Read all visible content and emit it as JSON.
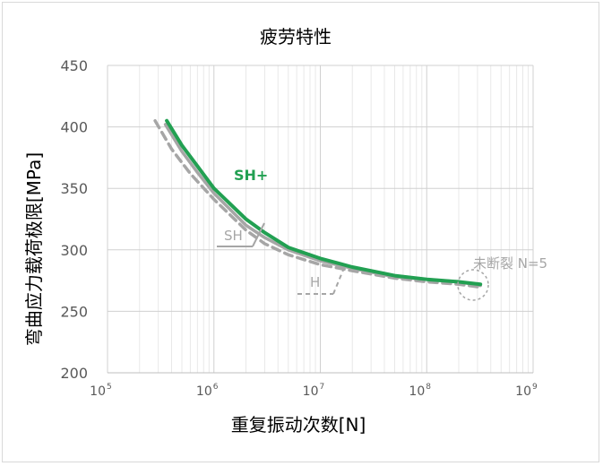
{
  "chart_data": {
    "type": "line",
    "title": "疲劳特性",
    "xlabel": "重复振动次数[N]",
    "ylabel": "弯曲应力载荷极限[MPa]",
    "x_scale": "log",
    "xlim": [
      100000,
      1000000000
    ],
    "ylim": [
      200,
      450
    ],
    "y_ticks": [
      "200",
      "250",
      "300",
      "350",
      "400",
      "450"
    ],
    "x_ticks": [
      {
        "base": "10",
        "exp": "5"
      },
      {
        "base": "10",
        "exp": "6"
      },
      {
        "base": "10",
        "exp": "7"
      },
      {
        "base": "10",
        "exp": "8"
      },
      {
        "base": "10",
        "exp": "9"
      }
    ],
    "grid": true,
    "series": [
      {
        "name": "SH+",
        "color": "#22a052",
        "style": "solid",
        "x": [
          360000,
          500000,
          700000,
          1000000,
          2000000,
          3000000,
          5000000,
          10000000,
          20000000,
          50000000,
          100000000,
          200000000,
          320000000
        ],
        "y": [
          405,
          385,
          368,
          350,
          325,
          314,
          302,
          293,
          286,
          279,
          276,
          274,
          272
        ]
      },
      {
        "name": "SH",
        "color": "#a6a6a6",
        "style": "solid",
        "x": [
          350000,
          500000,
          700000,
          1000000,
          2000000,
          3000000,
          5000000,
          10000000,
          20000000,
          50000000,
          100000000,
          200000000,
          320000000
        ],
        "y": [
          402,
          380,
          363,
          346,
          320,
          310,
          300,
          291,
          285,
          278,
          276,
          274,
          271
        ]
      },
      {
        "name": "H",
        "color": "#a6a6a6",
        "style": "dashed",
        "x": [
          280000,
          400000,
          600000,
          1000000,
          2000000,
          3000000,
          5000000,
          10000000,
          20000000,
          50000000,
          100000000,
          200000000,
          300000000
        ],
        "y": [
          405,
          382,
          362,
          341,
          316,
          305,
          296,
          288,
          283,
          277,
          274,
          272,
          270
        ]
      }
    ],
    "annotations": {
      "sh_plus": "SH+",
      "sh": "SH",
      "h": "H",
      "unbroken": "未断裂 N=5"
    }
  }
}
